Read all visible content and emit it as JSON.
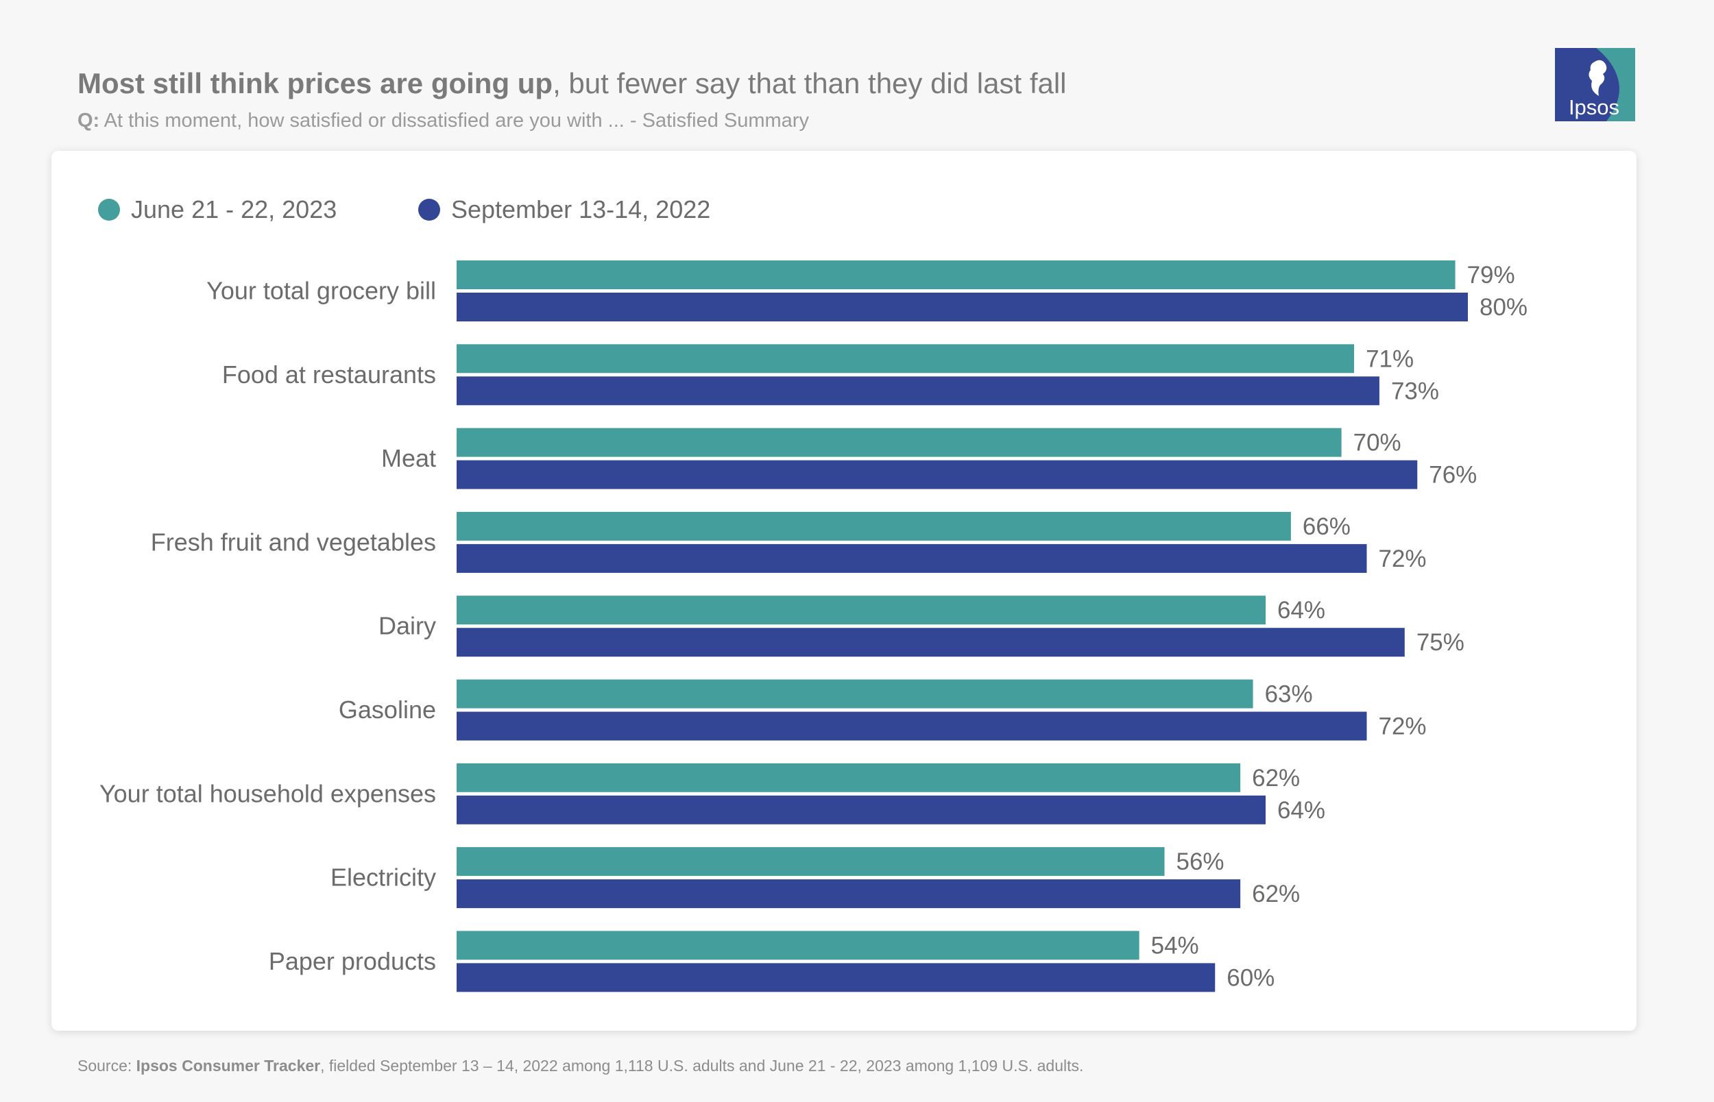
{
  "header": {
    "title_bold": "Most still think prices are going up",
    "title_rest": ", but fewer say that than they did last fall",
    "subtitle_q": "Q:",
    "subtitle_rest": " At this moment, how satisfied or dissatisfied are you with ...  - Satisfied Summary"
  },
  "logo": {
    "text": "Ipsos"
  },
  "colors": {
    "series1": "#439e9c",
    "series2": "#334695",
    "label": "#6b6b6b"
  },
  "chart_data": {
    "type": "bar",
    "orientation": "horizontal",
    "categories": [
      "Your total grocery bill",
      "Food at restaurants",
      "Meat",
      "Fresh fruit and vegetables",
      "Dairy",
      "Gasoline",
      "Your total household expenses",
      "Electricity",
      "Paper products"
    ],
    "series": [
      {
        "name": "June 21 - 22, 2023",
        "color": "#439e9c",
        "values": [
          79,
          71,
          70,
          66,
          64,
          63,
          62,
          56,
          54
        ]
      },
      {
        "name": "September 13-14, 2022",
        "color": "#334695",
        "values": [
          80,
          73,
          76,
          72,
          75,
          72,
          64,
          62,
          60
        ]
      }
    ],
    "value_suffix": "%",
    "xlim": [
      0,
      100
    ],
    "legend": "top-left",
    "grid": false
  },
  "source": {
    "prefix": "Source: ",
    "bold": "Ipsos Consumer Tracker",
    "rest": ", fielded September 13 – 14, 2022 among 1,118 U.S. adults and June 21 - 22, 2023 among 1,109 U.S. adults."
  }
}
